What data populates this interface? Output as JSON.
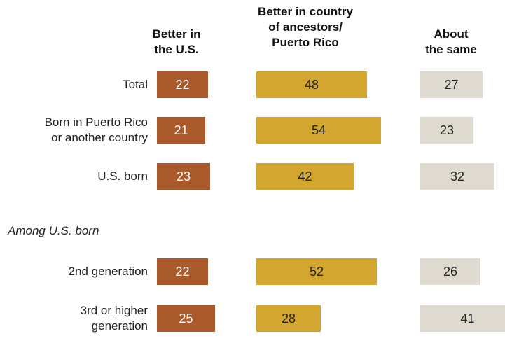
{
  "chart_data": {
    "type": "bar",
    "columns": [
      {
        "key": "us",
        "header": "Better in\nthe U.S.",
        "color": "#a9592a",
        "label_color": "#ffffff"
      },
      {
        "key": "ancestors",
        "header": "Better in country\nof ancestors/\nPuerto Rico",
        "color": "#d3a72f",
        "label_color": "#222222"
      },
      {
        "key": "same",
        "header": "About\nthe same",
        "color": "#dedad0",
        "label_color": "#222222"
      }
    ],
    "categories": [
      "Total",
      "Born in Puerto Rico\nor another country",
      "U.S. born",
      "2nd generation",
      "3rd or higher\ngeneration"
    ],
    "section_label": "Among U.S. born",
    "series": [
      {
        "name": "Better in the U.S.",
        "values": [
          22,
          21,
          23,
          22,
          25
        ]
      },
      {
        "name": "Better in country of ancestors/ Puerto Rico",
        "values": [
          48,
          54,
          42,
          52,
          28
        ]
      },
      {
        "name": "About the same",
        "values": [
          27,
          23,
          32,
          26,
          41
        ]
      }
    ]
  }
}
